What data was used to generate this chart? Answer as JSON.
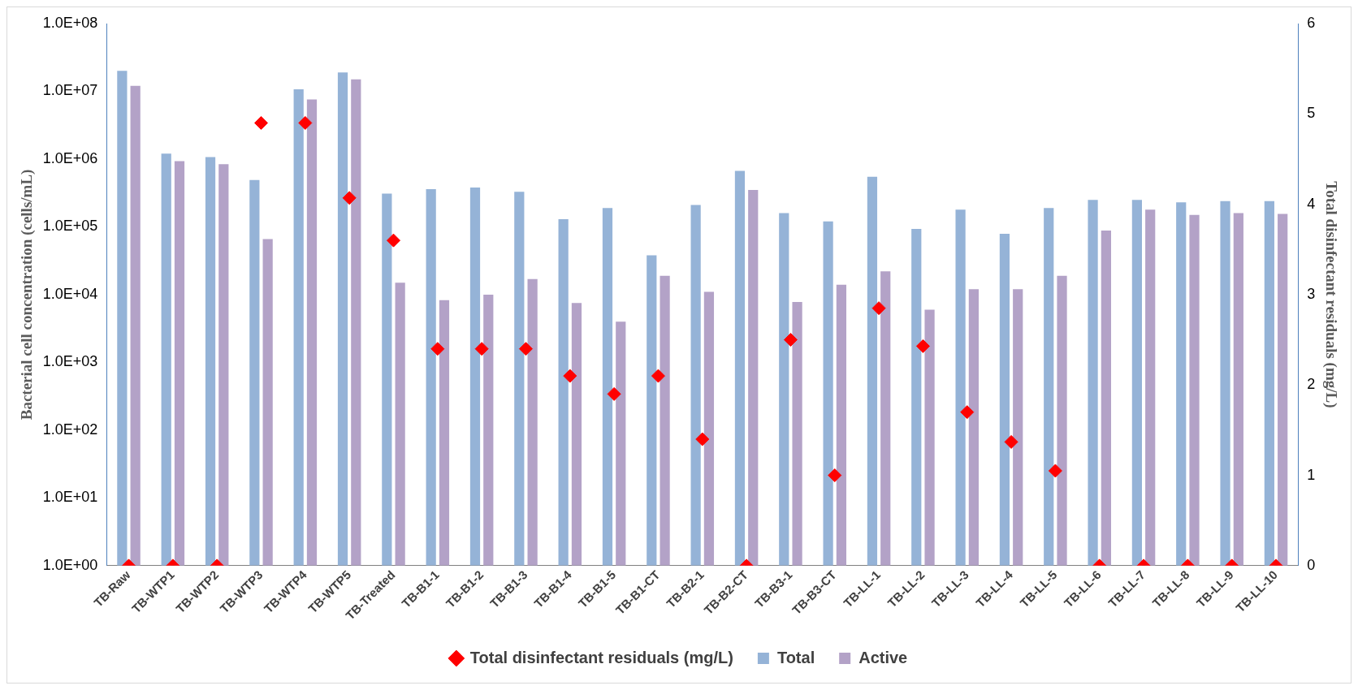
{
  "chart_data": {
    "type": "bar",
    "ylabel": "Bacterial cell concentration (cells/mL)",
    "y2label": "Total disinfectant residuals (mg/L)",
    "categories": [
      "TB-Raw",
      "TB-WTP1",
      "TB-WTP2",
      "TB-WTP3",
      "TB-WTP4",
      "TB-WTP5",
      "TB-Treated",
      "TB-B1-1",
      "TB-B1-2",
      "TB-B1-3",
      "TB-B1-4",
      "TB-B1-5",
      "TB-B1-CT",
      "TB-B2-1",
      "TB-B2-CT",
      "TB-B3-1",
      "TB-B3-CT",
      "TB-LL-1",
      "TB-LL-2",
      "TB-LL-3",
      "TB-LL-4",
      "TB-LL-5",
      "TB-LL-6",
      "TB-LL-7",
      "TB-LL-8",
      "TB-LL-9",
      "TB-LL-10"
    ],
    "series": [
      {
        "name": "Total",
        "color": "#95b3d7",
        "values": [
          20000000,
          1200000,
          1070000,
          490000,
          10700000,
          19000000,
          310000,
          360000,
          380000,
          330000,
          130000,
          190000,
          38000,
          210000,
          670000,
          160000,
          120000,
          550000,
          93000,
          180000,
          79000,
          190000,
          250000,
          250000,
          230000,
          240000,
          240000
        ]
      },
      {
        "name": "Active",
        "color": "#b3a2c7",
        "values": [
          12000000,
          930000,
          840000,
          66000,
          7600000,
          15000000,
          15000,
          8300,
          10000,
          17000,
          7500,
          4000,
          19000,
          11000,
          350000,
          7800,
          14000,
          22000,
          6000,
          12000,
          12000,
          19000,
          88000,
          180000,
          150000,
          160000,
          155000
        ]
      },
      {
        "name": "Total disinfectant residuals (mg/L)",
        "type": "scatter",
        "axis": "y2",
        "marker": "diamond",
        "color": "#ff0000",
        "x": [
          "TB-Raw",
          "TB-WTP1",
          "TB-WTP2",
          "TB-WTP3",
          "TB-WTP4",
          "TB-WTP5",
          "TB-Treated",
          "TB-B1-1",
          "TB-B1-2",
          "TB-B1-3",
          "TB-B1-4",
          "TB-B1-5",
          "TB-B1-CT",
          "TB-B2-1",
          "TB-B2-CT",
          "TB-B3-1",
          "TB-B3-CT",
          "TB-LL-1",
          "TB-LL-2",
          "TB-LL-3",
          "TB-LL-4",
          "TB-LL-5",
          "TB-LL-6",
          "TB-LL-7",
          "TB-LL-8",
          "TB-LL-9",
          "TB-LL-10"
        ],
        "values": [
          0,
          0,
          0,
          4.9,
          4.9,
          4.07,
          3.6,
          2.4,
          2.4,
          2.4,
          2.1,
          1.9,
          2.1,
          1.4,
          0,
          2.5,
          1.0,
          2.85,
          2.43,
          1.7,
          1.37,
          1.05,
          0,
          0,
          0,
          0,
          0
        ]
      }
    ],
    "log": "y",
    "ylim": [
      1,
      100000000
    ],
    "yticks": [
      {
        "value": 1,
        "label": "1.0E+00"
      },
      {
        "value": 10,
        "label": "1.0E+01"
      },
      {
        "value": 100,
        "label": "1.0E+02"
      },
      {
        "value": 1000,
        "label": "1.0E+03"
      },
      {
        "value": 10000,
        "label": "1.0E+04"
      },
      {
        "value": 100000,
        "label": "1.0E+05"
      },
      {
        "value": 1000000,
        "label": "1.0E+06"
      },
      {
        "value": 10000000,
        "label": "1.0E+07"
      },
      {
        "value": 100000000,
        "label": "1.0E+08"
      }
    ],
    "y2lim": [
      0,
      6
    ],
    "y2ticks": [
      0,
      1,
      2,
      3,
      4,
      5,
      6
    ],
    "grid": false,
    "legend": "bottom"
  }
}
